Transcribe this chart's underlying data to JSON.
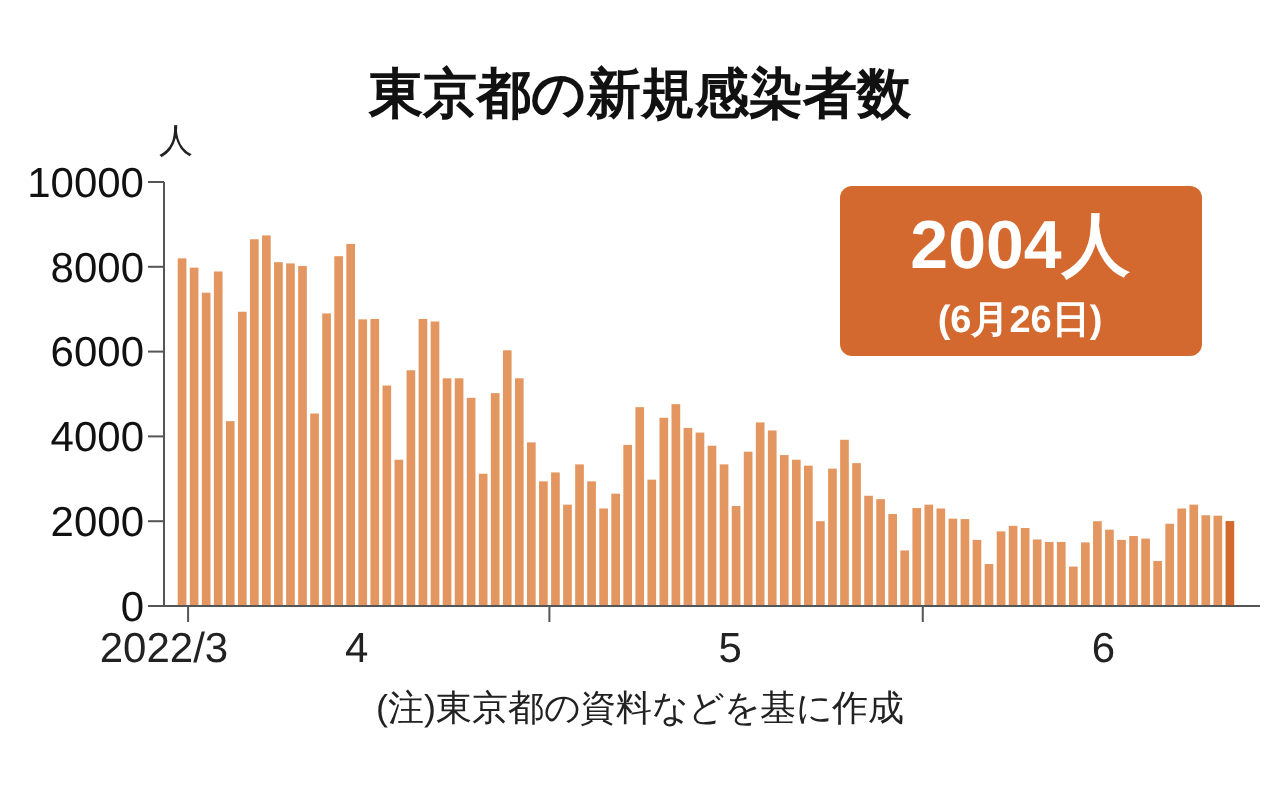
{
  "chart_data": {
    "type": "bar",
    "title": "東京都の新規感染者数",
    "ylabel": "人",
    "x": [
      "2022-03-31",
      "2022-04-01",
      "2022-04-02",
      "2022-04-03",
      "2022-04-04",
      "2022-04-05",
      "2022-04-06",
      "2022-04-07",
      "2022-04-08",
      "2022-04-09",
      "2022-04-10",
      "2022-04-11",
      "2022-04-12",
      "2022-04-13",
      "2022-04-14",
      "2022-04-15",
      "2022-04-16",
      "2022-04-17",
      "2022-04-18",
      "2022-04-19",
      "2022-04-20",
      "2022-04-21",
      "2022-04-22",
      "2022-04-23",
      "2022-04-24",
      "2022-04-25",
      "2022-04-26",
      "2022-04-27",
      "2022-04-28",
      "2022-04-29",
      "2022-04-30",
      "2022-05-01",
      "2022-05-02",
      "2022-05-03",
      "2022-05-04",
      "2022-05-05",
      "2022-05-06",
      "2022-05-07",
      "2022-05-08",
      "2022-05-09",
      "2022-05-10",
      "2022-05-11",
      "2022-05-12",
      "2022-05-13",
      "2022-05-14",
      "2022-05-15",
      "2022-05-16",
      "2022-05-17",
      "2022-05-18",
      "2022-05-19",
      "2022-05-20",
      "2022-05-21",
      "2022-05-22",
      "2022-05-23",
      "2022-05-24",
      "2022-05-25",
      "2022-05-26",
      "2022-05-27",
      "2022-05-28",
      "2022-05-29",
      "2022-05-30",
      "2022-05-31",
      "2022-06-01",
      "2022-06-02",
      "2022-06-03",
      "2022-06-04",
      "2022-06-05",
      "2022-06-06",
      "2022-06-07",
      "2022-06-08",
      "2022-06-09",
      "2022-06-10",
      "2022-06-11",
      "2022-06-12",
      "2022-06-13",
      "2022-06-14",
      "2022-06-15",
      "2022-06-16",
      "2022-06-17",
      "2022-06-18",
      "2022-06-19",
      "2022-06-20",
      "2022-06-21",
      "2022-06-22",
      "2022-06-23",
      "2022-06-24",
      "2022-06-25",
      "2022-06-26"
    ],
    "values": [
      8200,
      7980,
      7390,
      7890,
      4360,
      6940,
      8650,
      8740,
      8110,
      8080,
      8020,
      4540,
      6900,
      8250,
      8540,
      6760,
      6770,
      5200,
      3450,
      5560,
      6770,
      6710,
      5370,
      5370,
      4910,
      3120,
      5020,
      6030,
      5370,
      3860,
      2940,
      3150,
      2390,
      3340,
      2940,
      2300,
      2650,
      3800,
      4690,
      2980,
      4440,
      4760,
      4200,
      4090,
      3780,
      3340,
      2360,
      3640,
      4330,
      4140,
      3560,
      3450,
      3310,
      2000,
      3240,
      3920,
      3370,
      2600,
      2520,
      2170,
      1310,
      2310,
      2390,
      2300,
      2060,
      2050,
      1560,
      990,
      1760,
      1890,
      1840,
      1570,
      1510,
      1510,
      930,
      1500,
      2000,
      1800,
      1560,
      1650,
      1590,
      1060,
      1940,
      2300,
      2390,
      2140,
      2130,
      2004
    ],
    "colors": [
      "#e3965f",
      "#e3965f",
      "#e3965f",
      "#e3965f",
      "#e3965f",
      "#e3965f",
      "#e3965f",
      "#e3965f",
      "#e3965f",
      "#e3965f",
      "#e3965f",
      "#e3965f",
      "#e3965f",
      "#e3965f",
      "#e3965f",
      "#e3965f",
      "#e3965f",
      "#e3965f",
      "#e3965f",
      "#e3965f",
      "#e3965f",
      "#e3965f",
      "#e3965f",
      "#e3965f",
      "#e3965f",
      "#e3965f",
      "#e3965f",
      "#e3965f",
      "#e3965f",
      "#e3965f",
      "#e3965f",
      "#e3965f",
      "#e3965f",
      "#e3965f",
      "#e3965f",
      "#e3965f",
      "#e3965f",
      "#e3965f",
      "#e3965f",
      "#e3965f",
      "#e3965f",
      "#e3965f",
      "#e3965f",
      "#e3965f",
      "#e3965f",
      "#e3965f",
      "#e3965f",
      "#e3965f",
      "#e3965f",
      "#e3965f",
      "#e3965f",
      "#e3965f",
      "#e3965f",
      "#e3965f",
      "#e3965f",
      "#e3965f",
      "#e3965f",
      "#e3965f",
      "#e3965f",
      "#e3965f",
      "#e3965f",
      "#e3965f",
      "#e3965f",
      "#e3965f",
      "#e3965f",
      "#e3965f",
      "#e3965f",
      "#e3965f",
      "#e3965f",
      "#e3965f",
      "#e3965f",
      "#e3965f",
      "#e3965f",
      "#e3965f",
      "#e3965f",
      "#e3965f",
      "#e3965f",
      "#e3965f",
      "#e3965f",
      "#e3965f",
      "#e3965f",
      "#e3965f",
      "#e3965f",
      "#e3965f",
      "#e3965f",
      "#e3965f",
      "#e3965f",
      "#d4692f"
    ],
    "xlim": [
      "2022-03-30",
      "2022-06-29"
    ],
    "xticks": [
      {
        "value": "2022-03-30",
        "label": "2022/3"
      },
      {
        "value": "2022-04-01",
        "label": null
      },
      {
        "value": "2022-04-15",
        "label": "4"
      },
      {
        "value": "2022-05-01",
        "label": null
      },
      {
        "value": "2022-05-16",
        "label": "5"
      },
      {
        "value": "2022-06-01",
        "label": null
      },
      {
        "value": "2022-06-16",
        "label": "6"
      }
    ],
    "ylim": [
      0,
      10000
    ],
    "yticks": [
      0,
      2000,
      4000,
      6000,
      8000,
      10000
    ],
    "annotations": [
      "2004人",
      "(6月26日)",
      "(注)東京都の資料などを基に作成"
    ]
  }
}
